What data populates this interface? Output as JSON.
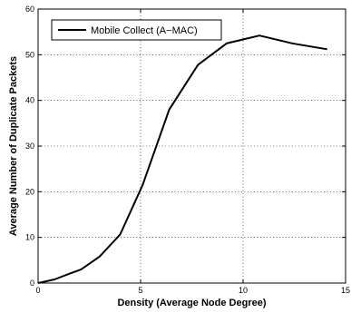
{
  "chart_data": {
    "type": "line",
    "xlabel": "Density (Average Node Degree)",
    "ylabel": "Average Number of Duplicate Packets",
    "xlim": [
      0,
      15
    ],
    "ylim": [
      0,
      60
    ],
    "x_ticks": [
      "0",
      "5",
      "10",
      "15"
    ],
    "y_ticks": [
      "0",
      "10",
      "20",
      "30",
      "40",
      "50",
      "60"
    ],
    "grid": true,
    "legend_position": "top-left",
    "series": [
      {
        "name": "Mobile Collect (A−MAC)",
        "color": "#000000",
        "x": [
          0,
          0.8,
          1.5,
          2.1,
          3.0,
          4.0,
          5.1,
          6.4,
          7.8,
          9.2,
          10.8,
          12.4,
          14.1
        ],
        "y": [
          0,
          0.8,
          2.0,
          3.0,
          5.8,
          10.6,
          21.5,
          38.0,
          47.8,
          52.5,
          54.2,
          52.5,
          51.2
        ]
      }
    ]
  }
}
